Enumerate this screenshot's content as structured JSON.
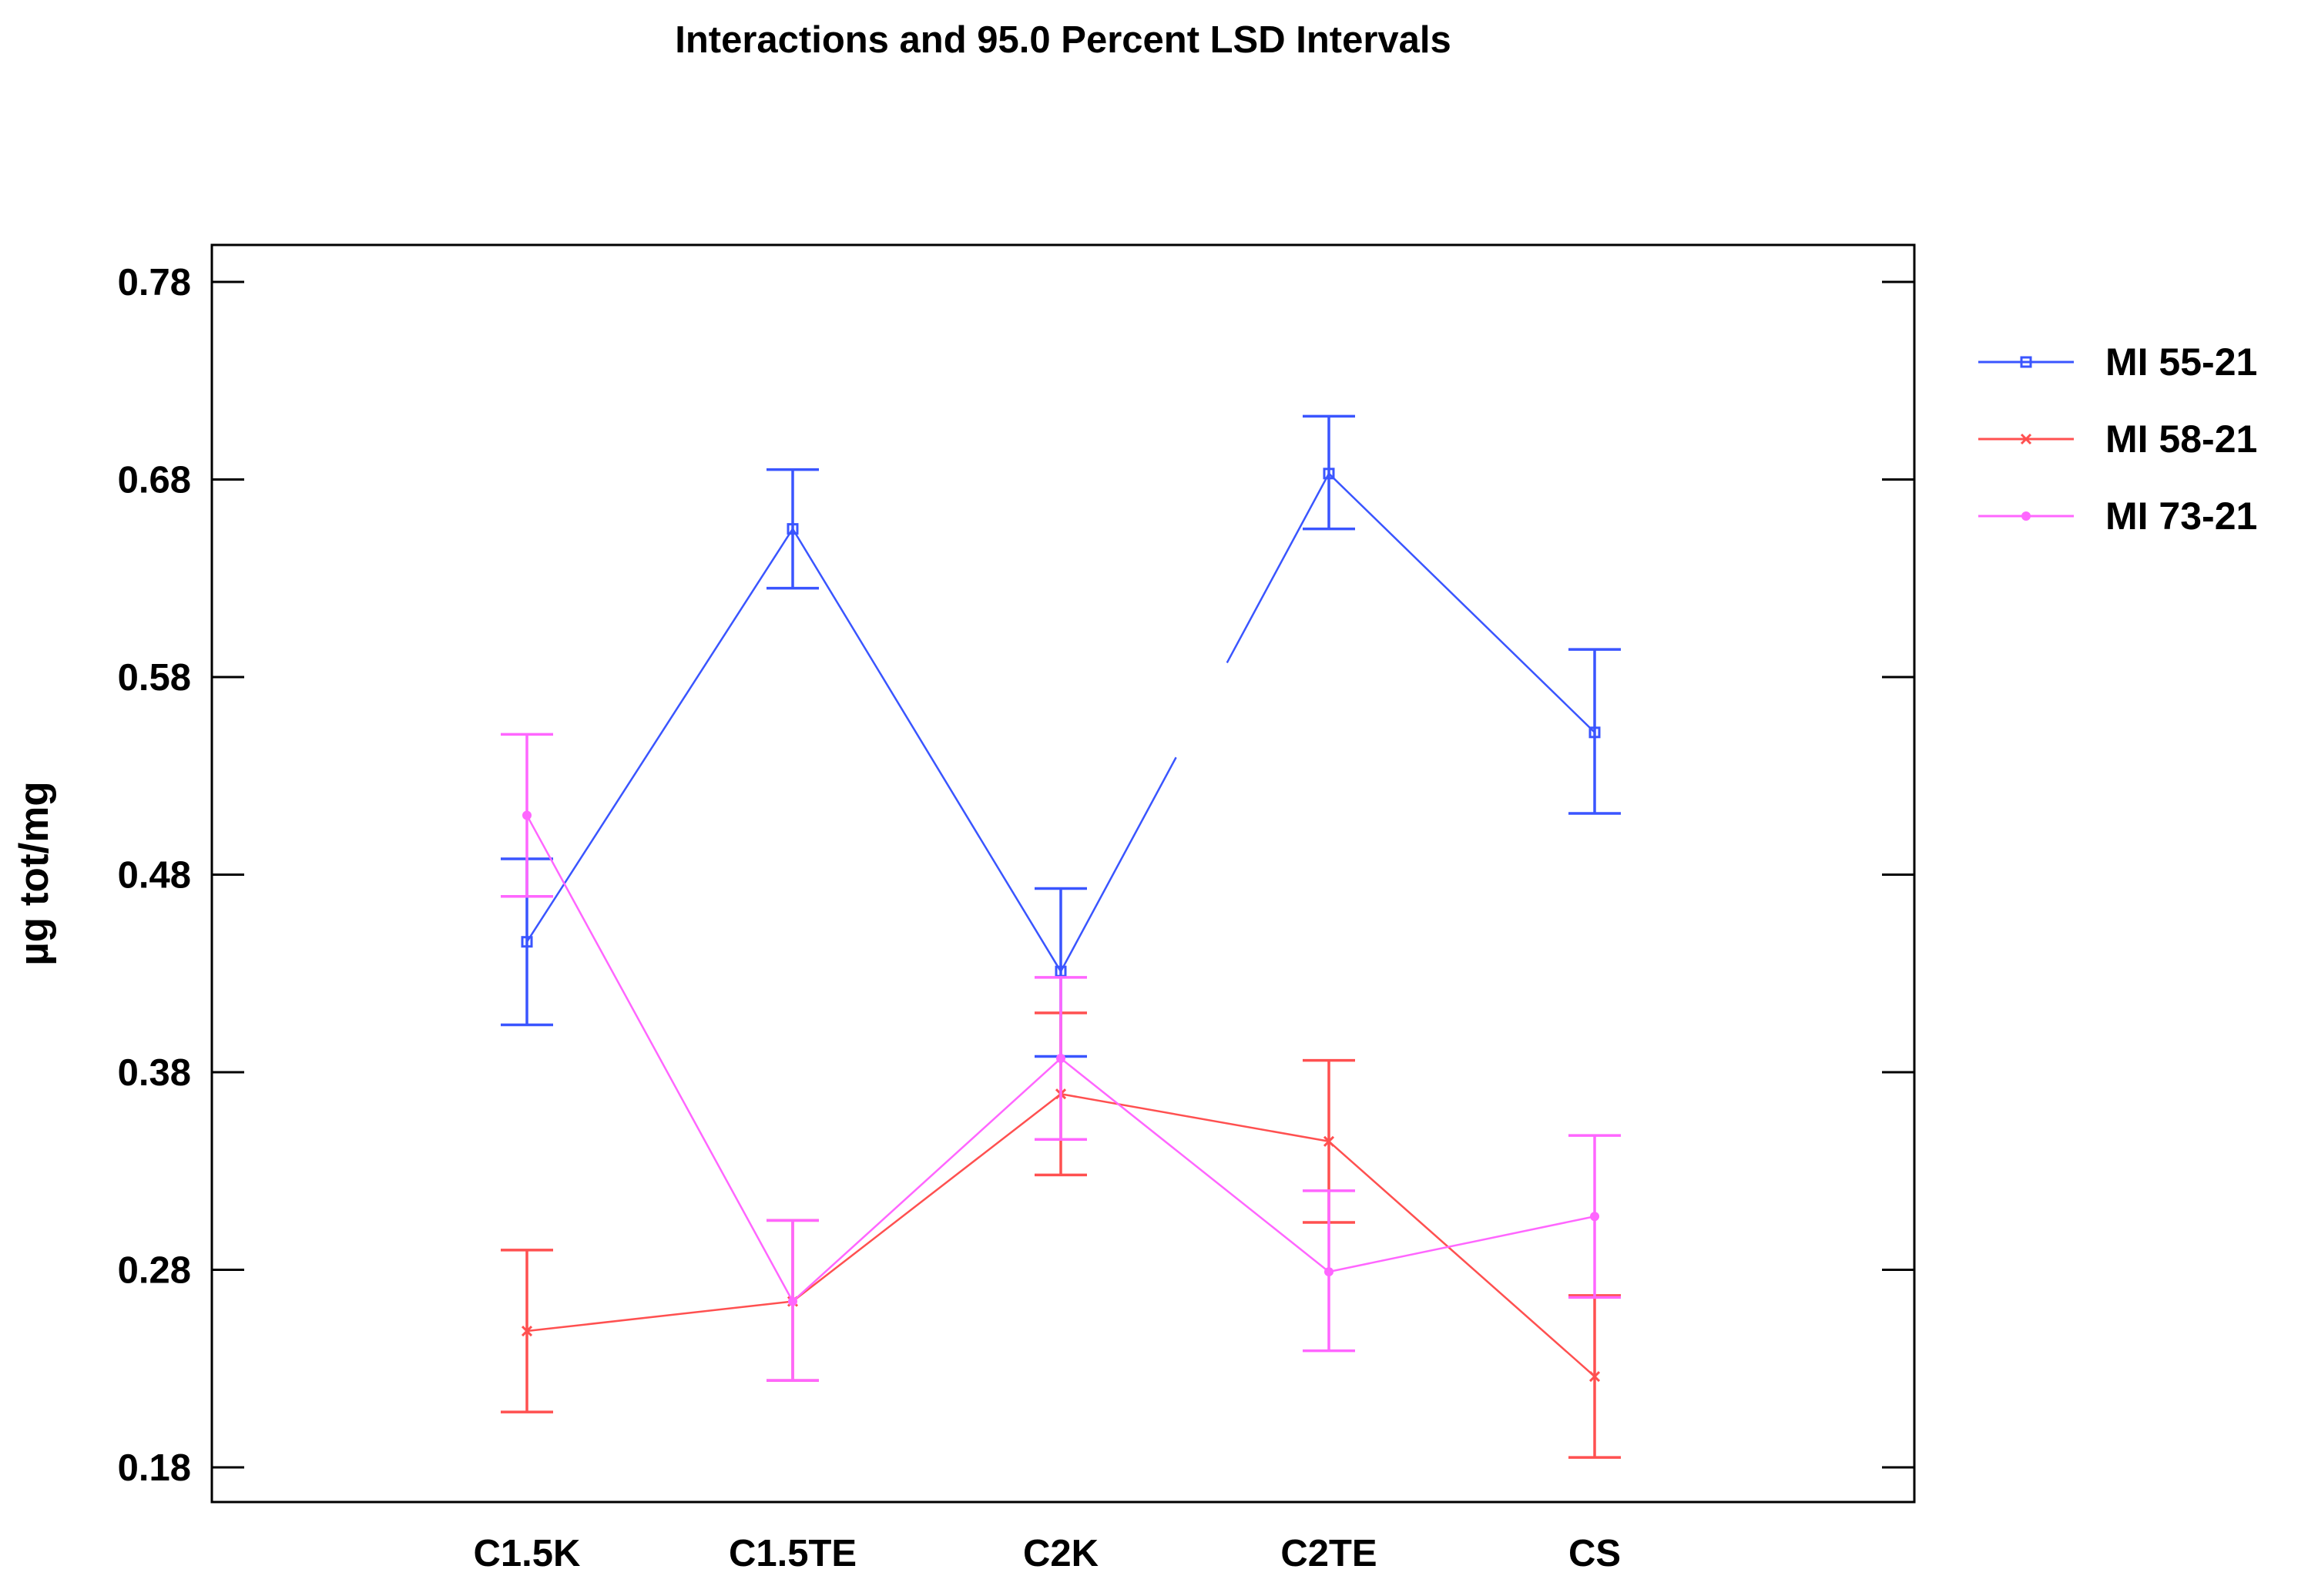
{
  "chart_data": {
    "type": "line",
    "title": "Interactions and 95.0 Percent LSD Intervals",
    "xlabel": "",
    "ylabel": "µg tot/mg",
    "categories": [
      "C1.5K",
      "C1.5TE",
      "C2K",
      "C2TE",
      "CS"
    ],
    "ylim": [
      0.16,
      0.8
    ],
    "yticks": [
      0.18,
      0.28,
      0.38,
      0.48,
      0.58,
      0.68,
      0.78
    ],
    "ytick_labels": [
      "0.18",
      "0.28",
      "0.38",
      "0.48",
      "0.58",
      "0.68",
      "0.78"
    ],
    "grid": false,
    "legend_position": "right",
    "series": [
      {
        "name": "MI 55-21",
        "color": "#3a55ff",
        "marker": "square",
        "values": [
          0.446,
          0.655,
          0.431,
          0.683,
          0.552
        ],
        "lower": [
          0.404,
          0.625,
          0.388,
          0.655,
          0.511
        ],
        "upper": [
          0.488,
          0.685,
          0.473,
          0.712,
          0.594
        ],
        "line_gap_after_index": 2
      },
      {
        "name": "MI 58-21",
        "color": "#ff5050",
        "marker": "x",
        "values": [
          0.249,
          0.264,
          0.369,
          0.345,
          0.226
        ],
        "lower": [
          0.208,
          0.224,
          0.328,
          0.304,
          0.185
        ],
        "upper": [
          0.29,
          0.305,
          0.41,
          0.386,
          0.267
        ],
        "line_gap_after_index": null
      },
      {
        "name": "MI 73-21",
        "color": "#ff66ff",
        "marker": "dot",
        "values": [
          0.51,
          0.264,
          0.387,
          0.279,
          0.307
        ],
        "lower": [
          0.469,
          0.224,
          0.346,
          0.239,
          0.266
        ],
        "upper": [
          0.551,
          0.305,
          0.428,
          0.32,
          0.348
        ],
        "line_gap_after_index": null
      }
    ]
  }
}
